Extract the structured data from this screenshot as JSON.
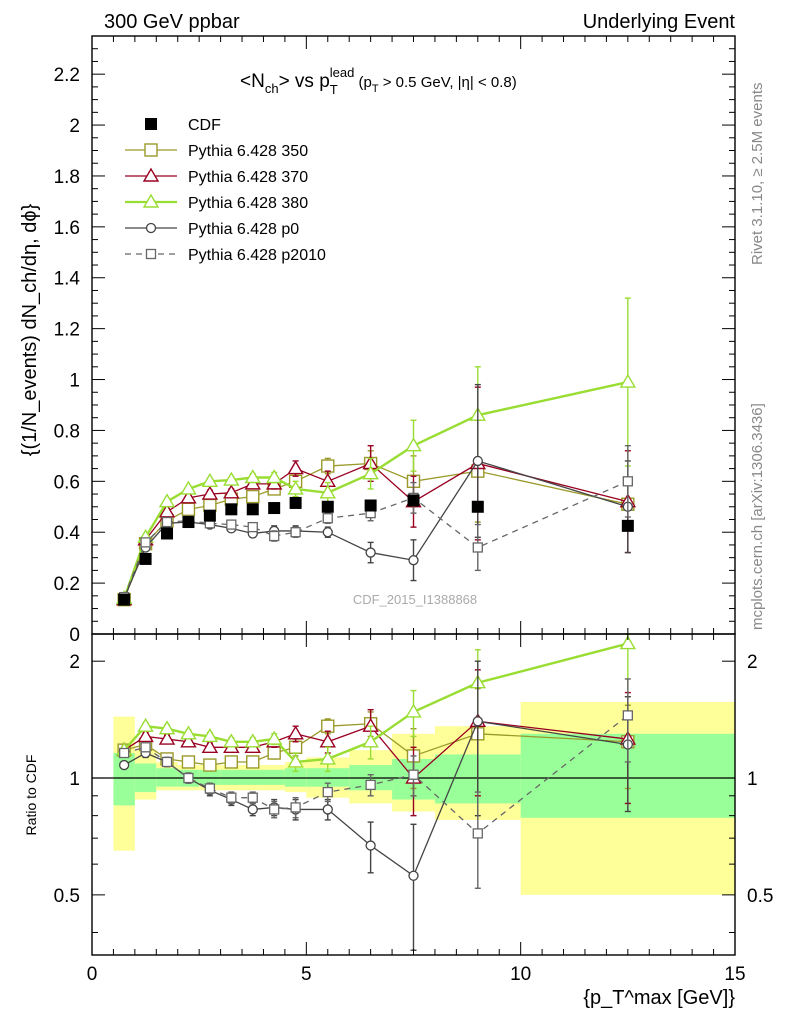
{
  "header": {
    "left": "300 GeV ppbar",
    "right": "Underlying Event",
    "side_top": "Rivet 3.1.10, ≥ 2.5M events",
    "side_bottom": "mcplots.cern.ch [arXiv:1306.3436]",
    "watermark": "CDF_2015_I1388868"
  },
  "plot_title": {
    "a": "<N",
    "a_sub": "ch",
    "b": "> vs p",
    "b_sub": "T",
    "b_sup": "lead",
    "c": " (p",
    "c_sub": "T",
    "d": " > 0.5 GeV, |η| < 0.8)"
  },
  "ylabel_main": "{(1/N_events) dN_ch/dη, dϕ}",
  "ylabel_ratio": "Ratio to CDF",
  "xlabel": "{p_T^max [GeV]}",
  "colors": {
    "cdf": "#000000",
    "p350": "#9a9a2a",
    "p370": "#990022",
    "p380": "#99dd33",
    "p0": "#444444",
    "p2010": "#666666",
    "band_yellow": "#ffff99",
    "band_green": "#99ff99"
  },
  "chart_data": {
    "type": "scatter",
    "x_ticks": [
      0,
      5,
      10,
      15
    ],
    "x_tick_labels": [
      "0",
      "5",
      "10",
      "15"
    ],
    "xlim": [
      0,
      15
    ],
    "main": {
      "ylim": [
        0,
        2.35
      ],
      "y_ticks": [
        0,
        0.2,
        0.4,
        0.6,
        0.8,
        1,
        1.2,
        1.4,
        1.6,
        1.8,
        2,
        2.2
      ],
      "y_tick_labels": [
        "0",
        "0.2",
        "0.4",
        "0.6",
        "0.8",
        "1",
        "1.2",
        "1.4",
        "1.6",
        "1.8",
        "2",
        "2.2"
      ]
    },
    "ratio": {
      "ylim": [
        0.35,
        2.35
      ],
      "scale": "log",
      "y_ticks": [
        0.5,
        1,
        2
      ],
      "y_tick_labels": [
        "0.5",
        "1",
        "2"
      ]
    },
    "x": [
      0.75,
      1.25,
      1.75,
      2.25,
      2.75,
      3.25,
      3.75,
      4.25,
      4.75,
      5.5,
      6.5,
      7.5,
      9,
      12.5
    ],
    "bins": [
      [
        0.5,
        1
      ],
      [
        1,
        1.5
      ],
      [
        1.5,
        2
      ],
      [
        2,
        2.5
      ],
      [
        2.5,
        3
      ],
      [
        3,
        3.5
      ],
      [
        3.5,
        4
      ],
      [
        4,
        4.5
      ],
      [
        4.5,
        5
      ],
      [
        5,
        6
      ],
      [
        6,
        7
      ],
      [
        7,
        8
      ],
      [
        8,
        10
      ],
      [
        10,
        15
      ]
    ],
    "bands": {
      "green_low": [
        0.85,
        0.92,
        0.95,
        0.95,
        0.96,
        0.96,
        0.96,
        0.96,
        0.95,
        0.95,
        0.93,
        0.88,
        0.86,
        0.79
      ],
      "green_high": [
        1.16,
        1.09,
        1.06,
        1.05,
        1.05,
        1.05,
        1.05,
        1.05,
        1.06,
        1.06,
        1.08,
        1.12,
        1.15,
        1.3
      ],
      "yellow_low": [
        0.65,
        0.88,
        0.93,
        0.93,
        0.93,
        0.93,
        0.93,
        0.93,
        0.92,
        0.89,
        0.86,
        0.82,
        0.78,
        0.5
      ],
      "yellow_high": [
        1.44,
        1.18,
        1.1,
        1.08,
        1.08,
        1.08,
        1.08,
        1.08,
        1.1,
        1.13,
        1.18,
        1.3,
        1.36,
        1.57
      ]
    },
    "legend_position": "top-left",
    "series": [
      {
        "name": "CDF",
        "key": "cdf",
        "marker": "square-filled",
        "dash": "",
        "line": false,
        "values": [
          0.135,
          0.295,
          0.395,
          0.44,
          0.465,
          0.49,
          0.49,
          0.495,
          0.515,
          0.5,
          0.505,
          0.525,
          0.5,
          0.425
        ],
        "errors": [
          0,
          0,
          0,
          0,
          0,
          0,
          0,
          0,
          0,
          0,
          0,
          0,
          0,
          0
        ],
        "ratio": [
          1,
          1,
          1,
          1,
          1,
          1,
          1,
          1,
          1,
          1,
          1,
          1,
          1,
          1
        ],
        "ratio_errors": [
          0,
          0,
          0,
          0,
          0,
          0,
          0,
          0,
          0,
          0,
          0,
          0,
          0,
          0
        ]
      },
      {
        "name": "Pythia 6.428 350",
        "key": "p350",
        "marker": "square-open",
        "dash": "",
        "line": true,
        "values": [
          0.135,
          0.355,
          0.445,
          0.49,
          0.505,
          0.53,
          0.54,
          0.57,
          0.6,
          0.66,
          0.67,
          0.6,
          0.64,
          0.51
        ],
        "errors": [
          0.01,
          0.012,
          0.012,
          0.012,
          0.012,
          0.012,
          0.015,
          0.02,
          0.03,
          0.03,
          0.05,
          0.1,
          0.2,
          0.1
        ],
        "ratio": [
          1.18,
          1.22,
          1.12,
          1.1,
          1.08,
          1.1,
          1.1,
          1.16,
          1.2,
          1.36,
          1.38,
          1.14,
          1.3,
          1.24
        ],
        "ratio_errors": [
          0.02,
          0.03,
          0.03,
          0.03,
          0.03,
          0.03,
          0.03,
          0.04,
          0.06,
          0.06,
          0.1,
          0.2,
          0.4,
          0.3
        ]
      },
      {
        "name": "Pythia 6.428 370",
        "key": "p370",
        "marker": "triangle-open",
        "dash": "",
        "line": true,
        "values": [
          0.135,
          0.37,
          0.48,
          0.535,
          0.55,
          0.555,
          0.59,
          0.59,
          0.65,
          0.6,
          0.67,
          0.52,
          0.67,
          0.52
        ],
        "errors": [
          0.01,
          0.012,
          0.012,
          0.012,
          0.015,
          0.015,
          0.015,
          0.02,
          0.03,
          0.04,
          0.07,
          0.1,
          0.3,
          0.2
        ],
        "ratio": [
          1.18,
          1.28,
          1.26,
          1.24,
          1.2,
          1.2,
          1.2,
          1.24,
          1.3,
          1.24,
          1.36,
          1.0,
          1.4,
          1.26
        ],
        "ratio_errors": [
          0.02,
          0.03,
          0.03,
          0.03,
          0.03,
          0.03,
          0.03,
          0.04,
          0.06,
          0.08,
          0.14,
          0.2,
          0.5,
          0.4
        ]
      },
      {
        "name": "Pythia 6.428 380",
        "key": "p380",
        "marker": "triangle-open",
        "dash": "",
        "line": true,
        "values": [
          0.14,
          0.38,
          0.52,
          0.57,
          0.6,
          0.605,
          0.615,
          0.615,
          0.57,
          0.555,
          0.63,
          0.74,
          0.86,
          0.99
        ],
        "errors": [
          0.01,
          0.012,
          0.012,
          0.012,
          0.012,
          0.012,
          0.015,
          0.02,
          0.03,
          0.04,
          0.06,
          0.1,
          0.19,
          0.33
        ],
        "ratio": [
          1.18,
          1.36,
          1.34,
          1.3,
          1.28,
          1.24,
          1.24,
          1.26,
          1.1,
          1.12,
          1.24,
          1.48,
          1.76,
          2.22
        ],
        "ratio_errors": [
          0.02,
          0.03,
          0.03,
          0.03,
          0.03,
          0.03,
          0.03,
          0.04,
          0.06,
          0.08,
          0.12,
          0.2,
          0.38,
          0.6
        ]
      },
      {
        "name": "Pythia 6.428 p0",
        "key": "p0",
        "marker": "circle-open",
        "dash": "",
        "line": true,
        "values": [
          0.14,
          0.34,
          0.435,
          0.44,
          0.43,
          0.415,
          0.395,
          0.405,
          0.405,
          0.4,
          0.32,
          0.29,
          0.68,
          0.5
        ],
        "errors": [
          0.01,
          0.012,
          0.012,
          0.012,
          0.012,
          0.012,
          0.015,
          0.02,
          0.02,
          0.02,
          0.04,
          0.08,
          0.3,
          0.18
        ],
        "ratio": [
          1.08,
          1.16,
          1.1,
          1.0,
          0.93,
          0.88,
          0.83,
          0.84,
          0.83,
          0.83,
          0.67,
          0.56,
          1.4,
          1.22
        ],
        "ratio_errors": [
          0.02,
          0.03,
          0.03,
          0.03,
          0.03,
          0.03,
          0.03,
          0.04,
          0.05,
          0.05,
          0.1,
          0.2,
          0.6,
          0.4
        ]
      },
      {
        "name": "Pythia 6.428 p2010",
        "key": "p2010",
        "marker": "square-open-small",
        "dash": "6,5",
        "line": true,
        "values": [
          0.145,
          0.36,
          0.44,
          0.445,
          0.435,
          0.43,
          0.42,
          0.385,
          0.4,
          0.455,
          0.475,
          0.535,
          0.34,
          0.6
        ],
        "errors": [
          0.01,
          0.012,
          0.012,
          0.012,
          0.012,
          0.012,
          0.015,
          0.02,
          0.02,
          0.02,
          0.03,
          0.06,
          0.09,
          0.14
        ],
        "ratio": [
          1.16,
          1.2,
          1.1,
          1.0,
          0.94,
          0.89,
          0.89,
          0.83,
          0.84,
          0.92,
          0.96,
          1.02,
          0.72,
          1.45
        ],
        "ratio_errors": [
          0.02,
          0.03,
          0.03,
          0.03,
          0.03,
          0.03,
          0.03,
          0.04,
          0.05,
          0.05,
          0.06,
          0.12,
          0.2,
          0.35
        ]
      }
    ]
  }
}
